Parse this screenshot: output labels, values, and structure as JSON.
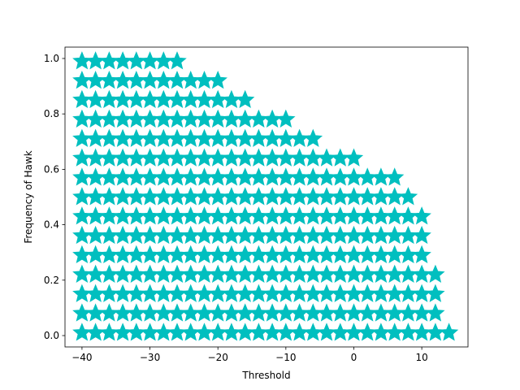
{
  "chart_data": {
    "type": "scatter",
    "xlabel": "Threshold",
    "ylabel": "Frequency of Hawk",
    "color": "#00bfbf",
    "marker": "star",
    "xlim": [
      -42.5,
      16.8
    ],
    "ylim": [
      -0.041,
      1.041
    ],
    "xticks": [
      {
        "value": -40,
        "label": "−40"
      },
      {
        "value": -30,
        "label": "−30"
      },
      {
        "value": -20,
        "label": "−20"
      },
      {
        "value": -10,
        "label": "−10"
      },
      0,
      10
    ],
    "yticks": [
      {
        "value": 0,
        "label": "0.0"
      },
      0.2,
      0.4,
      0.6,
      0.8,
      {
        "value": 1,
        "label": "1.0"
      }
    ],
    "x": [
      -40,
      -40,
      -40,
      -40,
      -40,
      -40,
      -40,
      -40,
      -40,
      -40,
      -40,
      -40,
      -40,
      -40,
      -40,
      -38,
      -38,
      -38,
      -38,
      -38,
      -38,
      -38,
      -38,
      -38,
      -38,
      -38,
      -38,
      -38,
      -38,
      -38,
      -36,
      -36,
      -36,
      -36,
      -36,
      -36,
      -36,
      -36,
      -36,
      -36,
      -36,
      -36,
      -36,
      -36,
      -36,
      -34,
      -34,
      -34,
      -34,
      -34,
      -34,
      -34,
      -34,
      -34,
      -34,
      -34,
      -34,
      -34,
      -34,
      -34,
      -32,
      -32,
      -32,
      -32,
      -32,
      -32,
      -32,
      -32,
      -32,
      -32,
      -32,
      -32,
      -32,
      -32,
      -32,
      -30,
      -30,
      -30,
      -30,
      -30,
      -30,
      -30,
      -30,
      -30,
      -30,
      -30,
      -30,
      -30,
      -30,
      -30,
      -28,
      -28,
      -28,
      -28,
      -28,
      -28,
      -28,
      -28,
      -28,
      -28,
      -28,
      -28,
      -28,
      -28,
      -28,
      -26,
      -26,
      -26,
      -26,
      -26,
      -26,
      -26,
      -26,
      -26,
      -26,
      -26,
      -26,
      -26,
      -26,
      -26,
      -24,
      -24,
      -24,
      -24,
      -24,
      -24,
      -24,
      -24,
      -24,
      -24,
      -24,
      -24,
      -24,
      -24,
      -22,
      -22,
      -22,
      -22,
      -22,
      -22,
      -22,
      -22,
      -22,
      -22,
      -22,
      -22,
      -22,
      -22,
      -20,
      -20,
      -20,
      -20,
      -20,
      -20,
      -20,
      -20,
      -20,
      -20,
      -20,
      -20,
      -20,
      -20,
      -18,
      -18,
      -18,
      -18,
      -18,
      -18,
      -18,
      -18,
      -18,
      -18,
      -18,
      -18,
      -18,
      -16,
      -16,
      -16,
      -16,
      -16,
      -16,
      -16,
      -16,
      -16,
      -16,
      -16,
      -16,
      -16,
      -14,
      -14,
      -14,
      -14,
      -14,
      -14,
      -14,
      -14,
      -14,
      -14,
      -14,
      -14,
      -12,
      -12,
      -12,
      -12,
      -12,
      -12,
      -12,
      -12,
      -12,
      -12,
      -12,
      -12,
      -10,
      -10,
      -10,
      -10,
      -10,
      -10,
      -10,
      -10,
      -10,
      -10,
      -10,
      -10,
      -8,
      -8,
      -8,
      -8,
      -8,
      -8,
      -8,
      -8,
      -8,
      -8,
      -8,
      -6,
      -6,
      -6,
      -6,
      -6,
      -6,
      -6,
      -6,
      -6,
      -6,
      -6,
      -4,
      -4,
      -4,
      -4,
      -4,
      -4,
      -4,
      -4,
      -4,
      -4,
      -2,
      -2,
      -2,
      -2,
      -2,
      -2,
      -2,
      -2,
      -2,
      -2,
      0,
      0,
      0,
      0,
      0,
      0,
      0,
      0,
      0,
      0,
      2,
      2,
      2,
      2,
      2,
      2,
      2,
      2,
      2,
      4,
      4,
      4,
      4,
      4,
      4,
      4,
      4,
      4,
      6,
      6,
      6,
      6,
      6,
      6,
      6,
      6,
      6,
      8,
      8,
      8,
      8,
      8,
      8,
      8,
      8,
      10,
      10,
      10,
      10,
      10,
      10,
      10,
      12,
      12,
      12,
      12,
      14
    ],
    "y": [
      0.01,
      0.08,
      0.15,
      0.22,
      0.29,
      0.36,
      0.43,
      0.5,
      0.57,
      0.64,
      0.71,
      0.78,
      0.85,
      0.92,
      0.99,
      0.01,
      0.08,
      0.15,
      0.22,
      0.29,
      0.36,
      0.43,
      0.5,
      0.57,
      0.64,
      0.71,
      0.78,
      0.85,
      0.92,
      0.99,
      0.01,
      0.08,
      0.15,
      0.22,
      0.29,
      0.36,
      0.43,
      0.5,
      0.57,
      0.64,
      0.71,
      0.78,
      0.85,
      0.92,
      0.99,
      0.01,
      0.08,
      0.15,
      0.22,
      0.29,
      0.36,
      0.43,
      0.5,
      0.57,
      0.64,
      0.71,
      0.78,
      0.85,
      0.92,
      0.99,
      0.01,
      0.08,
      0.15,
      0.22,
      0.29,
      0.36,
      0.43,
      0.5,
      0.57,
      0.64,
      0.71,
      0.78,
      0.85,
      0.92,
      0.99,
      0.01,
      0.08,
      0.15,
      0.22,
      0.29,
      0.36,
      0.43,
      0.5,
      0.57,
      0.64,
      0.71,
      0.78,
      0.85,
      0.92,
      0.99,
      0.01,
      0.08,
      0.15,
      0.22,
      0.29,
      0.36,
      0.43,
      0.5,
      0.57,
      0.64,
      0.71,
      0.78,
      0.85,
      0.92,
      0.99,
      0.01,
      0.08,
      0.15,
      0.22,
      0.29,
      0.36,
      0.43,
      0.5,
      0.57,
      0.64,
      0.71,
      0.78,
      0.85,
      0.92,
      0.99,
      0.01,
      0.08,
      0.15,
      0.22,
      0.29,
      0.36,
      0.43,
      0.5,
      0.57,
      0.64,
      0.71,
      0.78,
      0.85,
      0.92,
      0.01,
      0.08,
      0.15,
      0.22,
      0.29,
      0.36,
      0.43,
      0.5,
      0.57,
      0.64,
      0.71,
      0.78,
      0.85,
      0.92,
      0.01,
      0.08,
      0.15,
      0.22,
      0.29,
      0.36,
      0.43,
      0.5,
      0.57,
      0.64,
      0.71,
      0.78,
      0.85,
      0.92,
      0.01,
      0.08,
      0.15,
      0.22,
      0.29,
      0.36,
      0.43,
      0.5,
      0.57,
      0.64,
      0.71,
      0.78,
      0.85,
      0.01,
      0.08,
      0.15,
      0.22,
      0.29,
      0.36,
      0.43,
      0.5,
      0.57,
      0.64,
      0.71,
      0.78,
      0.85,
      0.01,
      0.08,
      0.15,
      0.22,
      0.29,
      0.36,
      0.43,
      0.5,
      0.57,
      0.64,
      0.71,
      0.78,
      0.01,
      0.08,
      0.15,
      0.22,
      0.29,
      0.36,
      0.43,
      0.5,
      0.57,
      0.64,
      0.71,
      0.78,
      0.01,
      0.08,
      0.15,
      0.22,
      0.29,
      0.36,
      0.43,
      0.5,
      0.57,
      0.64,
      0.71,
      0.78,
      0.01,
      0.08,
      0.15,
      0.22,
      0.29,
      0.36,
      0.43,
      0.5,
      0.57,
      0.64,
      0.71,
      0.01,
      0.08,
      0.15,
      0.22,
      0.29,
      0.36,
      0.43,
      0.5,
      0.57,
      0.64,
      0.71,
      0.01,
      0.08,
      0.15,
      0.22,
      0.29,
      0.36,
      0.43,
      0.5,
      0.57,
      0.64,
      0.01,
      0.08,
      0.15,
      0.22,
      0.29,
      0.36,
      0.43,
      0.5,
      0.57,
      0.64,
      0.01,
      0.08,
      0.15,
      0.22,
      0.29,
      0.36,
      0.43,
      0.5,
      0.57,
      0.64,
      0.01,
      0.08,
      0.15,
      0.22,
      0.29,
      0.36,
      0.43,
      0.5,
      0.57,
      0.01,
      0.08,
      0.15,
      0.22,
      0.29,
      0.36,
      0.43,
      0.5,
      0.57,
      0.01,
      0.08,
      0.15,
      0.22,
      0.29,
      0.36,
      0.43,
      0.5,
      0.57,
      0.01,
      0.08,
      0.15,
      0.22,
      0.29,
      0.36,
      0.43,
      0.5,
      0.01,
      0.08,
      0.15,
      0.22,
      0.29,
      0.36,
      0.43,
      0.01,
      0.08,
      0.15,
      0.22,
      0.01
    ]
  }
}
